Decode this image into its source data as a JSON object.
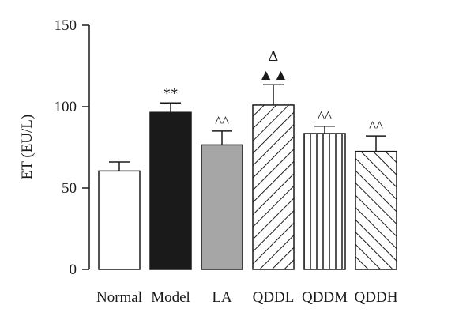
{
  "chart_data": {
    "type": "bar",
    "categories": [
      "Normal",
      "Model",
      "LA",
      "QDDL",
      "QDDM",
      "QDDH"
    ],
    "values": [
      60.5,
      96.5,
      76.5,
      101,
      83.5,
      72.5
    ],
    "errors": [
      5.5,
      5.8,
      8.5,
      12.5,
      4.5,
      9.5
    ],
    "fills": [
      "white",
      "black",
      "gray",
      "hatch-down",
      "hatch-vertical",
      "hatch-up"
    ],
    "annotations": [
      {
        "category": "Model",
        "text": "**"
      },
      {
        "category": "LA",
        "text": "^^"
      },
      {
        "category": "QDDL",
        "text": "▲▲"
      },
      {
        "category": "QDDL",
        "text": "Δ"
      },
      {
        "category": "QDDM",
        "text": "^^"
      },
      {
        "category": "QDDH",
        "text": "^^"
      }
    ],
    "ylabel": "ET (EU/L)",
    "ylim": [
      0,
      150
    ],
    "yticks": [
      0,
      50,
      100,
      150
    ],
    "grid": false,
    "colors": {
      "gray_fill": "#a6a6a6",
      "black_fill": "#1a1a1a",
      "stroke": "#1a1a1a"
    }
  }
}
